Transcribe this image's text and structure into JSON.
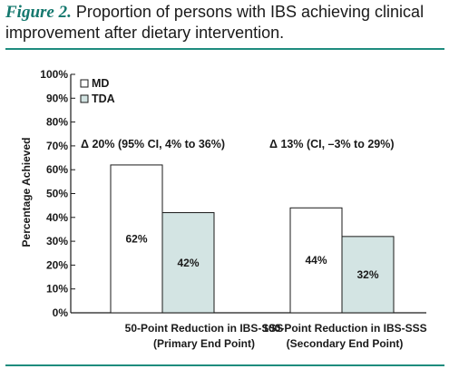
{
  "figure": {
    "label": "Figure 2.",
    "title_line1": "Proportion of persons with IBS achieving clinical",
    "title_line2": "improvement after dietary intervention."
  },
  "colors": {
    "accent": "#1e8c7e",
    "title_label": "#14786e",
    "md_fill": "#ffffff",
    "tda_fill": "#d3e4e3",
    "bar_stroke": "#1a1a1a"
  },
  "chart_data": {
    "type": "bar",
    "title": "",
    "xlabel": "",
    "ylabel": "Percentage Achieved",
    "ylim": [
      0,
      100
    ],
    "yticks": [
      "0%",
      "10%",
      "20%",
      "30%",
      "40%",
      "50%",
      "60%",
      "70%",
      "80%",
      "90%",
      "100%"
    ],
    "categories": [
      [
        "50-Point Reduction in IBS-SSS",
        "(Primary End Point)"
      ],
      [
        "100-Point Reduction in IBS-SSS",
        "(Secondary End Point)"
      ]
    ],
    "series": [
      {
        "name": "MD",
        "values": [
          62,
          44
        ],
        "labels": [
          "62%",
          "44%"
        ]
      },
      {
        "name": "TDA",
        "values": [
          42,
          32
        ],
        "labels": [
          "42%",
          "32%"
        ]
      }
    ],
    "annotations": [
      "Δ 20% (95% CI, 4% to 36%)",
      "Δ 13% (CI, –3% to 29%)"
    ],
    "legend": "top-left",
    "grid": false
  }
}
